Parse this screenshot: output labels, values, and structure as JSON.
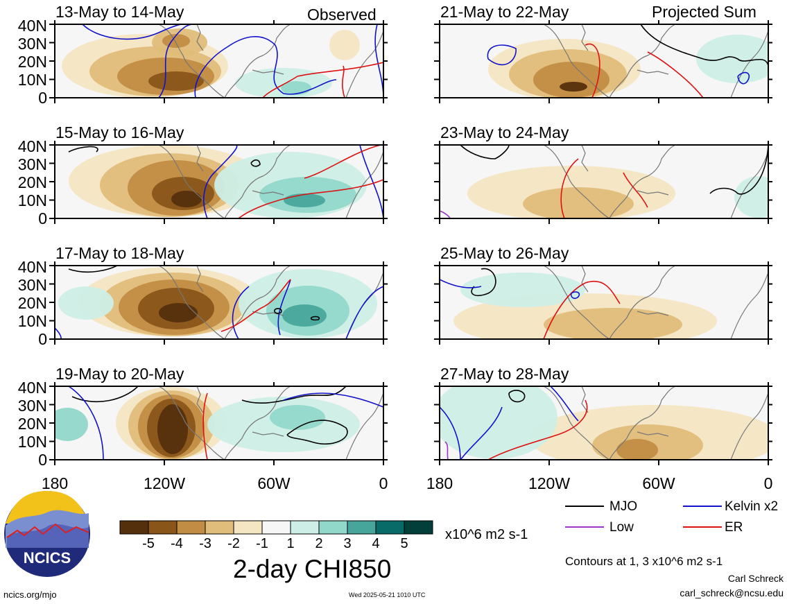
{
  "figure": {
    "title": "2-day CHI850",
    "units": "x10^6 m2 s-1",
    "contour_note": "Contours at 1, 3 x10^6 m2 s-1",
    "site": "ncics.org/mjo",
    "timestamp": "Wed 2025-05-21 1010 UTC",
    "author": "Carl Schreck",
    "email": "carl_schreck@ncsu.edu",
    "logo_text": "NCICS"
  },
  "columns": [
    {
      "header": "Observed"
    },
    {
      "header": "Projected Sum"
    }
  ],
  "panels": [
    {
      "title": "13-May to 14-May"
    },
    {
      "title": "15-May to 16-May"
    },
    {
      "title": "17-May to 18-May"
    },
    {
      "title": "19-May to 20-May"
    },
    {
      "title": "21-May to 22-May"
    },
    {
      "title": "23-May to 24-May"
    },
    {
      "title": "25-May to 26-May"
    },
    {
      "title": "27-May to 28-May"
    }
  ],
  "y_ticks": [
    "40N",
    "30N",
    "20N",
    "10N",
    "0"
  ],
  "x_ticks": [
    "180",
    "120W",
    "60W",
    "0"
  ],
  "colorbar": {
    "labels": [
      "-5",
      "-4",
      "-3",
      "-2",
      "-1",
      "1",
      "2",
      "3",
      "4",
      "5"
    ],
    "colors": [
      "#54300c",
      "#8a5519",
      "#c28c45",
      "#e0bd7a",
      "#f4e6c2",
      "#f6f6f6",
      "#cdeee6",
      "#91d8ca",
      "#47a69b",
      "#096b67",
      "#033f3a"
    ]
  },
  "legend": [
    {
      "label": "MJO",
      "color": "#000000"
    },
    {
      "label": "Kelvin x2",
      "color": "#1111cc"
    },
    {
      "label": "Low",
      "color": "#9933cc"
    },
    {
      "label": "ER",
      "color": "#dd1111"
    }
  ]
}
